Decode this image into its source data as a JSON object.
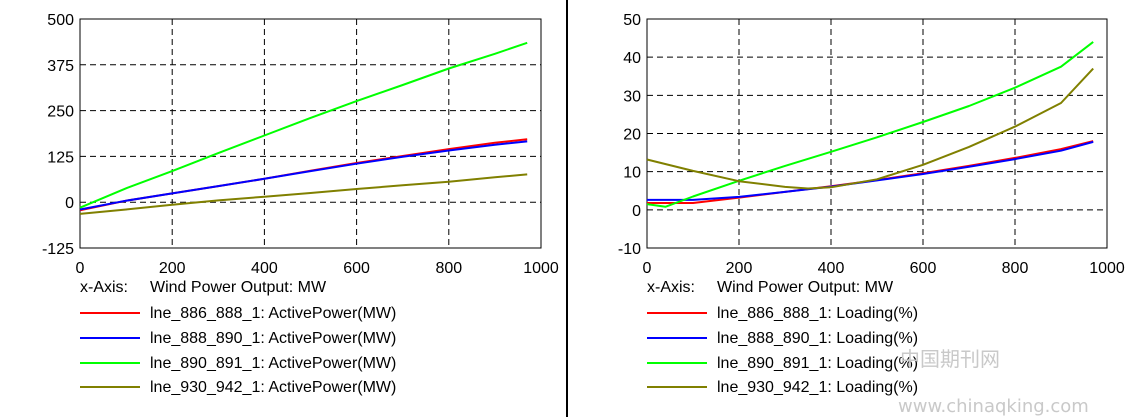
{
  "chart_data": [
    {
      "type": "line",
      "xlabel_prefix": "x-Axis:",
      "xlabel": "Wind Power Output: MW",
      "xlim": [
        0,
        1000
      ],
      "ylim": [
        -125,
        500
      ],
      "xticks": [
        0,
        200,
        400,
        600,
        800,
        1000
      ],
      "yticks": [
        -125,
        0,
        125,
        250,
        375,
        500
      ],
      "grid": true,
      "legend_placement": "bottom",
      "series": [
        {
          "name": "lne_886_888_1: ActivePower(MW)",
          "color": "#ff0000",
          "x": [
            0,
            100,
            200,
            300,
            400,
            500,
            600,
            700,
            800,
            900,
            970
          ],
          "y": [
            -22,
            4,
            24,
            44,
            64,
            86,
            107,
            126,
            145,
            162,
            172
          ]
        },
        {
          "name": "lne_888_890_1: ActivePower(MW)",
          "color": "#0000ff",
          "x": [
            0,
            100,
            200,
            300,
            400,
            500,
            600,
            700,
            800,
            900,
            970
          ],
          "y": [
            -20,
            4,
            24,
            44,
            64,
            85,
            105,
            124,
            141,
            157,
            166
          ]
        },
        {
          "name": "lne_890_891_1: ActivePower(MW)",
          "color": "#00ff00",
          "x": [
            0,
            100,
            200,
            300,
            400,
            500,
            600,
            700,
            800,
            900,
            970
          ],
          "y": [
            -15,
            38,
            85,
            134,
            182,
            230,
            276,
            320,
            365,
            405,
            435
          ]
        },
        {
          "name": "lne_930_942_1: ActivePower(MW)",
          "color": "#808000",
          "x": [
            0,
            100,
            200,
            300,
            400,
            500,
            600,
            700,
            800,
            900,
            970
          ],
          "y": [
            -32,
            -20,
            -7,
            5,
            15,
            25,
            36,
            46,
            56,
            68,
            76
          ]
        }
      ]
    },
    {
      "type": "line",
      "xlabel_prefix": "x-Axis:",
      "xlabel": "Wind Power Output: MW",
      "xlim": [
        0,
        1000
      ],
      "ylim": [
        -10,
        50
      ],
      "xticks": [
        0,
        200,
        400,
        600,
        800,
        1000
      ],
      "yticks": [
        -10,
        0,
        10,
        20,
        30,
        40,
        50
      ],
      "grid": true,
      "legend_placement": "bottom",
      "series": [
        {
          "name": "lne_886_888_1: Loading(%)",
          "color": "#ff0000",
          "x": [
            0,
            100,
            200,
            300,
            400,
            500,
            600,
            700,
            800,
            900,
            970
          ],
          "y": [
            1.8,
            1.8,
            3.2,
            4.7,
            6.2,
            7.8,
            9.6,
            11.5,
            13.6,
            15.9,
            18
          ]
        },
        {
          "name": "lne_888_890_1: Loading(%)",
          "color": "#0000ff",
          "x": [
            0,
            100,
            200,
            300,
            400,
            500,
            600,
            700,
            800,
            900,
            970
          ],
          "y": [
            2.6,
            2.6,
            3.4,
            4.7,
            6.1,
            7.7,
            9.4,
            11.3,
            13.3,
            15.5,
            17.8
          ]
        },
        {
          "name": "lne_890_891_1: Loading(%)",
          "color": "#00ff00",
          "x": [
            0,
            40,
            100,
            200,
            300,
            400,
            500,
            600,
            700,
            800,
            900,
            970
          ],
          "y": [
            1.5,
            0.8,
            3.5,
            7.6,
            11.5,
            15.2,
            19.0,
            23.0,
            27.2,
            32.0,
            37.5,
            44
          ]
        },
        {
          "name": "lne_930_942_1: Loading(%)",
          "color": "#808000",
          "x": [
            0,
            100,
            200,
            300,
            350,
            400,
            500,
            600,
            700,
            800,
            900,
            970
          ],
          "y": [
            13.2,
            10.2,
            7.5,
            6.0,
            5.6,
            5.9,
            8.0,
            11.8,
            16.5,
            21.8,
            28.0,
            37
          ]
        }
      ]
    }
  ],
  "watermark": {
    "line1": "中国期刊网",
    "line2": "www.chinaqking.com"
  }
}
